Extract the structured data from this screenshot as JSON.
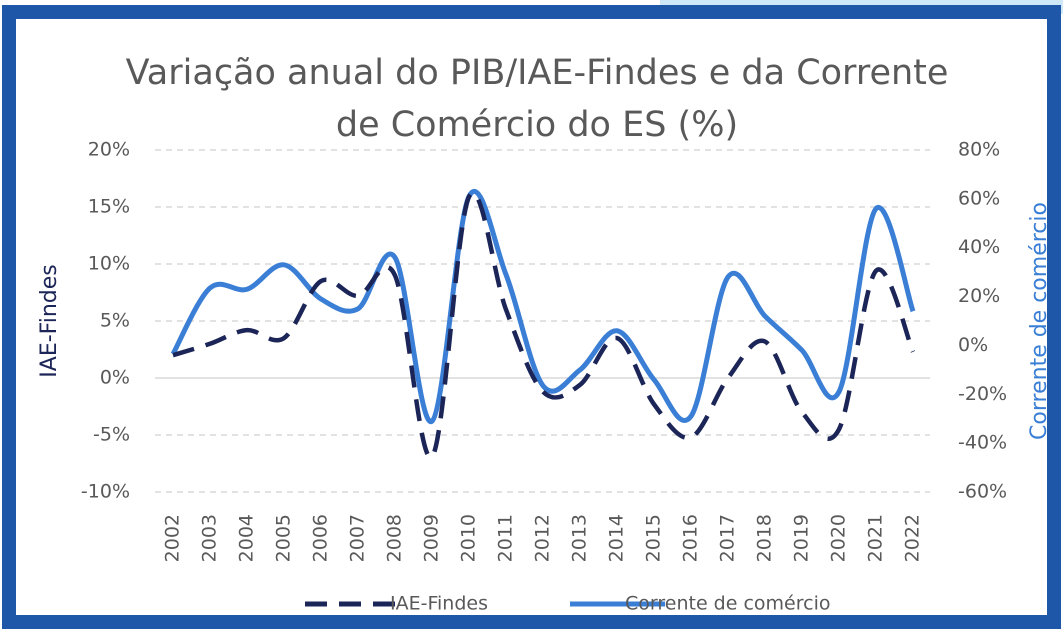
{
  "chart_data": {
    "type": "line",
    "title": "Variação anual do PIB/IAE-Findes e da Corrente",
    "subtitle": "de Comércio do ES (%)",
    "ylabel": "IAE-Findes",
    "y2label": "Corrente de comércio",
    "categories": [
      "2002",
      "2003",
      "2004",
      "2005",
      "2006",
      "2007",
      "2008",
      "2009",
      "2010",
      "2011",
      "2012",
      "2013",
      "2014",
      "2015",
      "2016",
      "2017",
      "2018",
      "2019",
      "2020",
      "2021",
      "2022"
    ],
    "series": [
      {
        "name": "IAE-Findes",
        "color": "#1c2557",
        "dashed": true,
        "axis": "y",
        "values": [
          2.0,
          3.0,
          4.2,
          3.5,
          8.5,
          7.2,
          9.0,
          -6.9,
          15.9,
          6.0,
          -1.2,
          -0.6,
          3.5,
          -2.3,
          -5.2,
          0.0,
          3.2,
          -3.0,
          -4.5,
          9.4,
          2.3
        ]
      },
      {
        "name": "Corrente de comércio",
        "color": "#3a7fd5",
        "dashed": false,
        "axis": "y2",
        "values": [
          -3.5,
          23.5,
          23,
          33,
          19,
          15,
          36,
          -31,
          61,
          29,
          -16.5,
          -10,
          6,
          -14,
          -29,
          28,
          12,
          -2,
          -19,
          56,
          14
        ]
      }
    ],
    "ylim": [
      -10,
      20
    ],
    "yticks": [
      {
        "value": -10,
        "label": "-10%"
      },
      {
        "value": -5,
        "label": "-5%"
      },
      {
        "value": 0,
        "label": "0%"
      },
      {
        "value": 5,
        "label": "5%"
      },
      {
        "value": 10,
        "label": "10%"
      },
      {
        "value": 15,
        "label": "15%"
      },
      {
        "value": 20,
        "label": "20%"
      }
    ],
    "y2lim": [
      -60,
      80
    ],
    "y2ticks": [
      {
        "value": -60,
        "label": "-60%"
      },
      {
        "value": -40,
        "label": "-40%"
      },
      {
        "value": -20,
        "label": "-20%"
      },
      {
        "value": 0,
        "label": "0%"
      },
      {
        "value": 20,
        "label": "20%"
      },
      {
        "value": 40,
        "label": "40%"
      },
      {
        "value": 60,
        "label": "60%"
      },
      {
        "value": 80,
        "label": "80%"
      }
    ],
    "grid": true,
    "legend": "bottom"
  }
}
